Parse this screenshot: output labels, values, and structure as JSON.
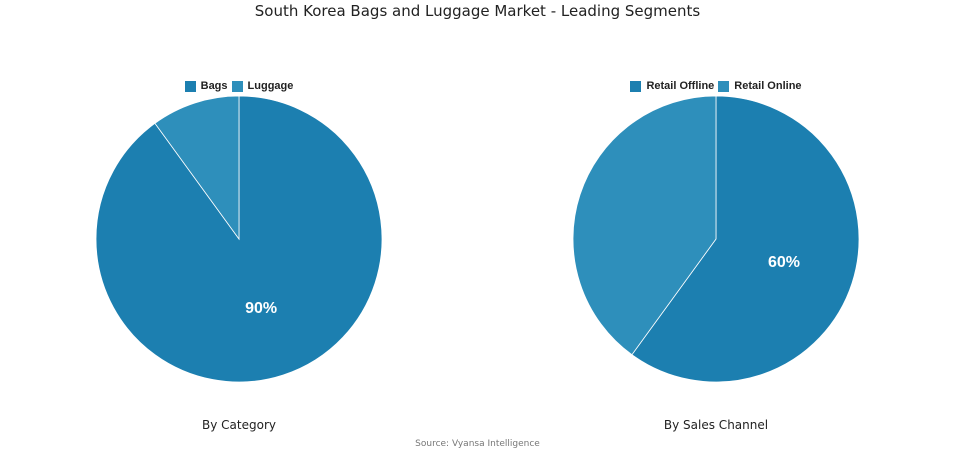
{
  "title": "South Korea Bags and Luggage Market - Leading Segments",
  "source": "Source: Vyansa Intelligence",
  "chart_data": [
    {
      "type": "pie",
      "caption": "By Category",
      "categories": [
        "Bags",
        "Luggage"
      ],
      "values": [
        90,
        10
      ],
      "colors": [
        "#1c7fb0",
        "#2e8fbb"
      ],
      "data_labels": [
        "90%",
        ""
      ],
      "legend_position": "top"
    },
    {
      "type": "pie",
      "caption": "By Sales Channel",
      "categories": [
        "Retail Offline",
        "Retail Online"
      ],
      "values": [
        60,
        40
      ],
      "colors": [
        "#1c7fb0",
        "#2e8fbb"
      ],
      "data_labels": [
        "60%",
        ""
      ],
      "legend_position": "top"
    }
  ]
}
